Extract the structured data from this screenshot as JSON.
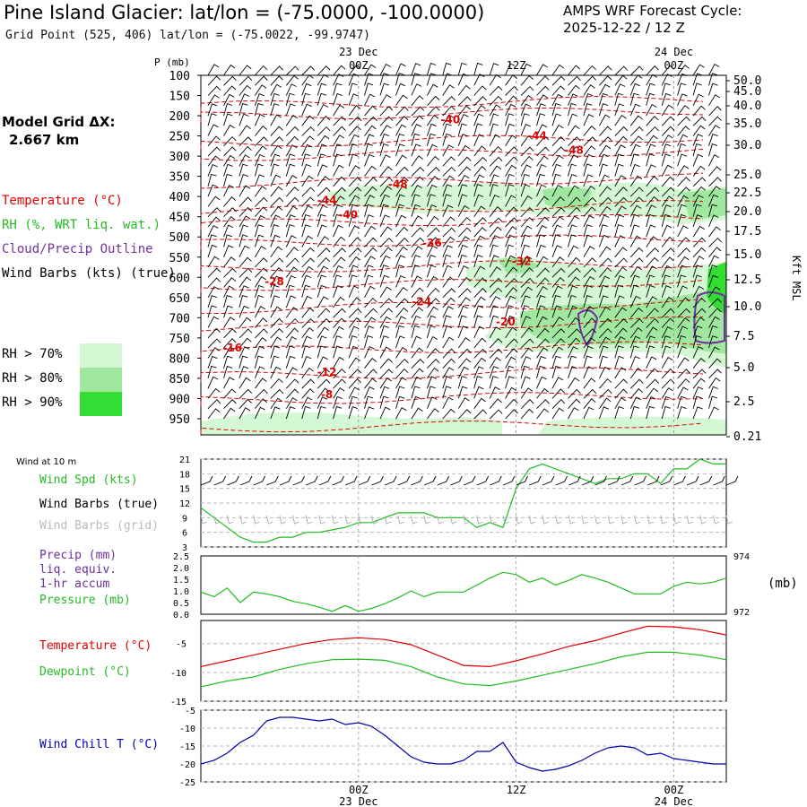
{
  "header": {
    "title": "Pine Island Glacier:  lat/lon = (-75.0000, -100.0000)",
    "subtitle": "Grid Point (525, 406) lat/lon = (-75.0022, -99.9747)",
    "cycle_line1": "AMPS WRF Forecast Cycle:",
    "cycle_line2": "2025-12-22 / 12  Z",
    "grid_label1": "Model Grid ΔX:",
    "grid_label2": "2.667 km"
  },
  "colors": {
    "temperature": "#e00000",
    "rh": "#22bb22",
    "cloud": "#7030a0",
    "wind": "#000000",
    "wind_grid": "#bbbbbb",
    "pressure": "#22bb22",
    "dewpoint": "#22bb22",
    "windchill": "#0000aa"
  },
  "legend": {
    "temperature": "Temperature (°C)",
    "rh": "RH (%, WRT liq. wat.)",
    "cloud": "Cloud/Precip Outline",
    "wind": "Wind Barbs (kts) (true)",
    "rh70": "RH > 70%",
    "rh80": "RH > 80%",
    "rh90": "RH > 90%",
    "rh_colors": [
      "#d4f8d4",
      "#a0e8a0",
      "#33dd33"
    ]
  },
  "time_axis": {
    "top_date1": "23 Dec",
    "top_date2": "24 Dec",
    "ticks": [
      "00Z",
      "12Z",
      "00Z"
    ],
    "bottom_date1": "23 Dec",
    "bottom_date2": "24 Dec"
  },
  "chart_data": [
    {
      "type": "heatmap",
      "name": "cross-section",
      "ylabel": "P (mb)",
      "pressure_levels": [
        100,
        150,
        200,
        250,
        300,
        350,
        400,
        450,
        500,
        550,
        600,
        650,
        700,
        750,
        800,
        850,
        900,
        950
      ],
      "height_axis_label": "Kft MSL",
      "height_ticks": [
        "50.0",
        "45.0",
        "40.0",
        "35.0",
        "30.0",
        "25.0",
        "22.5",
        "20.0",
        "17.5",
        "15.0",
        "12.5",
        "10.0",
        "7.5",
        "5.0",
        "2.5",
        "0.21"
      ],
      "temperature_labels": [
        {
          "value": "-40",
          "t": 9.5,
          "p": 210
        },
        {
          "value": "-44",
          "t": 12.8,
          "p": 250
        },
        {
          "value": "-48",
          "t": 14.2,
          "p": 285
        },
        {
          "value": "-48",
          "t": 7.5,
          "p": 370
        },
        {
          "value": "-44",
          "t": 4.8,
          "p": 410
        },
        {
          "value": "-40",
          "t": 5.6,
          "p": 445
        },
        {
          "value": "-36",
          "t": 8.8,
          "p": 515
        },
        {
          "value": "-32",
          "t": 12.2,
          "p": 560
        },
        {
          "value": "-28",
          "t": 2.8,
          "p": 610
        },
        {
          "value": "-24",
          "t": 8.4,
          "p": 660
        },
        {
          "value": "-20",
          "t": 11.6,
          "p": 710
        },
        {
          "value": "-16",
          "t": 1.2,
          "p": 775
        },
        {
          "value": "-12",
          "t": 4.8,
          "p": 835
        },
        {
          "value": "-8",
          "t": 4.8,
          "p": 890
        }
      ]
    },
    {
      "type": "line",
      "name": "wind-10m",
      "title": "Wind at 10 m",
      "series_label": "Wind Spd (kts)",
      "barbs_true_label": "Wind Barbs (true)",
      "barbs_grid_label": "Wind Barbs (grid)",
      "yticks": [
        3,
        6,
        9,
        12,
        15,
        18,
        21
      ],
      "ylim": [
        3,
        21
      ],
      "x_hours": [
        -12,
        -11,
        -10,
        -9,
        -8,
        -7,
        -6,
        -5,
        -4,
        -3,
        -2,
        -1,
        0,
        1,
        2,
        3,
        4,
        5,
        6,
        7,
        8,
        9,
        10,
        11,
        12,
        13,
        14,
        15,
        16,
        17,
        18,
        19,
        20,
        21,
        22,
        23,
        24,
        25,
        26,
        27,
        28
      ],
      "values": [
        11,
        9,
        7,
        5,
        4,
        4,
        5,
        5,
        6,
        6,
        6.5,
        7,
        8,
        8,
        9,
        10,
        10,
        10,
        9,
        9,
        9,
        7,
        8,
        7,
        15,
        19,
        20,
        19,
        18,
        17,
        16,
        17,
        17,
        18,
        18,
        16,
        19,
        19,
        21,
        20,
        20
      ]
    },
    {
      "type": "line",
      "name": "precip-pressure",
      "precip_label1": "Precip (mm)",
      "precip_label2": "liq. equiv.",
      "precip_label3": "1-hr accum",
      "pressure_label": "Pressure (mb)",
      "yticks_left": [
        "2.5",
        "2.0",
        "1.5",
        "1.0",
        "0.5",
        "0.0"
      ],
      "yticks_right": [
        "974",
        "972"
      ],
      "right_unit": "(mb)",
      "x_hours": [
        -12,
        -11,
        -10,
        -9,
        -8,
        -7,
        -6,
        -5,
        -4,
        -3,
        -2,
        -1,
        0,
        1,
        2,
        3,
        4,
        5,
        6,
        7,
        8,
        9,
        10,
        11,
        12,
        13,
        14,
        15,
        16,
        17,
        18,
        19,
        20,
        21,
        22,
        23,
        24,
        25,
        26,
        27,
        28
      ],
      "pressure_norm": [
        0.38,
        0.3,
        0.45,
        0.2,
        0.38,
        0.35,
        0.3,
        0.22,
        0.18,
        0.12,
        0.05,
        0.15,
        0.05,
        0.1,
        0.18,
        0.28,
        0.4,
        0.3,
        0.38,
        0.38,
        0.38,
        0.5,
        0.62,
        0.72,
        0.68,
        0.55,
        0.62,
        0.5,
        0.58,
        0.68,
        0.62,
        0.55,
        0.45,
        0.35,
        0.35,
        0.35,
        0.48,
        0.55,
        0.52,
        0.55,
        0.62
      ]
    },
    {
      "type": "line",
      "name": "temp-dewpoint",
      "temp_label": "Temperature (°C)",
      "dew_label": "Dewpoint (°C)",
      "yticks": [
        -5,
        -10,
        -15
      ],
      "ylim": [
        -15,
        -1
      ],
      "x_hours": [
        -12,
        -10,
        -8,
        -6,
        -4,
        -2,
        0,
        2,
        4,
        6,
        8,
        10,
        12,
        14,
        16,
        18,
        20,
        22,
        24,
        26,
        28
      ],
      "temperature": [
        -9,
        -8,
        -7,
        -6,
        -5,
        -4.3,
        -4,
        -4.3,
        -5.2,
        -7,
        -8.8,
        -9,
        -8,
        -6.8,
        -5.5,
        -4.5,
        -3.2,
        -2,
        -2.1,
        -2.6,
        -3.5
      ],
      "dewpoint": [
        -12.5,
        -11.5,
        -10.8,
        -9.5,
        -8.5,
        -7.8,
        -7.7,
        -7.9,
        -9,
        -10.8,
        -12,
        -12.3,
        -11.5,
        -10.5,
        -9.5,
        -8.5,
        -7.3,
        -6.5,
        -6.5,
        -7,
        -7.8
      ]
    },
    {
      "type": "line",
      "name": "wind-chill",
      "label": "Wind Chill T (°C)",
      "yticks": [
        -5,
        -10,
        -15,
        -20,
        -25
      ],
      "ylim": [
        -25,
        -5
      ],
      "x_hours": [
        -12,
        -11,
        -10,
        -9,
        -8,
        -7,
        -6,
        -5,
        -4,
        -3,
        -2,
        -1,
        0,
        1,
        2,
        3,
        4,
        5,
        6,
        7,
        8,
        9,
        10,
        11,
        12,
        13,
        14,
        15,
        16,
        17,
        18,
        19,
        20,
        21,
        22,
        23,
        24,
        25,
        26,
        27,
        28
      ],
      "values": [
        -20,
        -19,
        -17,
        -14,
        -12,
        -8,
        -7,
        -7,
        -7.5,
        -8,
        -7.5,
        -9,
        -8.5,
        -9.5,
        -12,
        -15,
        -18,
        -19.5,
        -20,
        -20,
        -19,
        -16.5,
        -16.5,
        -14,
        -19.5,
        -21,
        -22,
        -21.5,
        -20.5,
        -19,
        -17,
        -15.5,
        -15,
        -15.5,
        -17.5,
        -17,
        -18.5,
        -19,
        -19.5,
        -20,
        -20
      ]
    }
  ]
}
